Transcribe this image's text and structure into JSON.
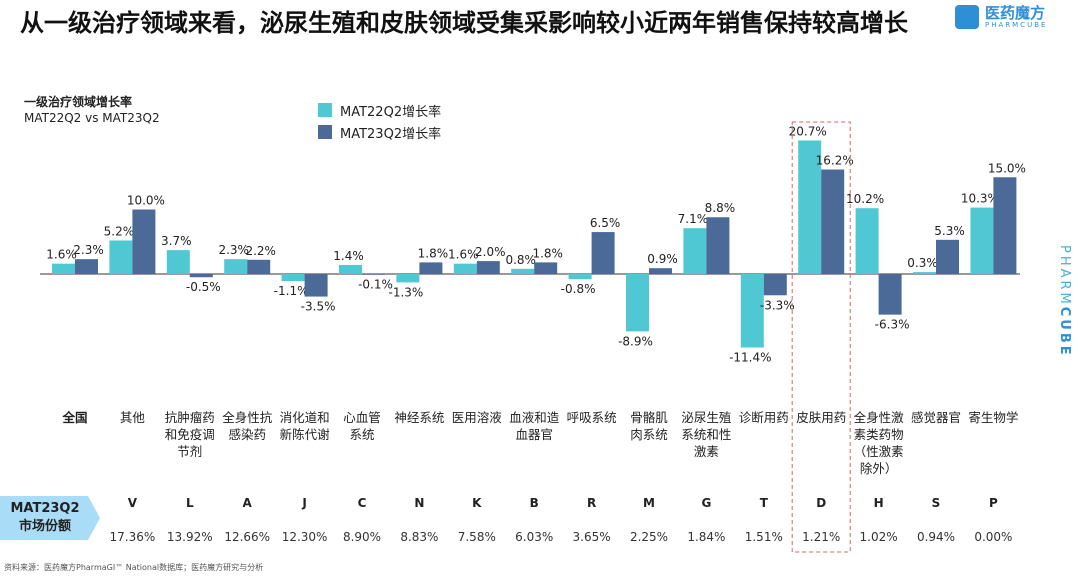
{
  "title": "从一级治疗领域来看，泌尿生殖和皮肤领域受集采影响较小近两年销售保持较高增长",
  "logo": {
    "cn": "医药魔方",
    "en": "PHARMCUBE"
  },
  "side_brand": {
    "a": "PHARM",
    "b": "CUBE"
  },
  "subtitle": {
    "line1": "一级治疗领域增长率",
    "line2": "MAT22Q2 vs MAT23Q2"
  },
  "share_label": {
    "line1": "MAT23Q2",
    "line2": "市场份额"
  },
  "source": "资料来源：医药魔方PharmaGI™ National数据库；医药魔方研究与分析",
  "colors": {
    "s1": "#4fc8d3",
    "s2": "#4b6a97",
    "highlight": "#e06060"
  },
  "chart_data": {
    "type": "bar",
    "title": "一级治疗领域增长率",
    "legend_position": "top-left",
    "categories": [
      "全国",
      "其他",
      "抗肿瘤药和免疫调节剂",
      "全身性抗感染药",
      "消化道和新陈代谢",
      "心血管系统",
      "神经系统",
      "医用溶液",
      "血液和造血器官",
      "呼吸系统",
      "骨骼肌肉系统",
      "泌尿生殖系统和性激素",
      "诊断用药",
      "皮肤用药",
      "全身性激素类药物（性激素除外）",
      "感觉器官",
      "寄生物学"
    ],
    "category_lines": [
      [
        "全国"
      ],
      [
        "其他"
      ],
      [
        "抗肿瘤药",
        "和免疫调",
        "节剂"
      ],
      [
        "全身性抗",
        "感染药"
      ],
      [
        "消化道和",
        "新陈代谢"
      ],
      [
        "心血管",
        "系统"
      ],
      [
        "神经系统"
      ],
      [
        "医用溶液"
      ],
      [
        "血液和造",
        "血器官"
      ],
      [
        "呼吸系统"
      ],
      [
        "骨骼肌",
        "肉系统"
      ],
      [
        "泌尿生殖",
        "系统和性",
        "激素"
      ],
      [
        "诊断用药"
      ],
      [
        "皮肤用药"
      ],
      [
        "全身性激",
        "素类药物",
        "（性激素",
        "除外）"
      ],
      [
        "感觉器官"
      ],
      [
        "寄生物学"
      ]
    ],
    "series": [
      {
        "name": "MAT22Q2增长率",
        "values": [
          1.6,
          5.2,
          3.7,
          2.3,
          -1.1,
          1.4,
          -1.3,
          1.6,
          0.8,
          -0.8,
          -8.9,
          7.1,
          -11.4,
          20.7,
          10.2,
          0.3,
          10.3
        ]
      },
      {
        "name": "MAT23Q2增长率",
        "values": [
          2.3,
          10.0,
          -0.5,
          2.2,
          -3.5,
          -0.1,
          1.8,
          2.0,
          1.8,
          6.5,
          0.9,
          8.8,
          -3.3,
          16.2,
          -6.3,
          5.3,
          15.0
        ]
      }
    ],
    "codes": [
      "",
      "V",
      "L",
      "A",
      "J",
      "C",
      "N",
      "K",
      "B",
      "R",
      "M",
      "G",
      "T",
      "D",
      "H",
      "S",
      "P"
    ],
    "shares": [
      "",
      "17.36%",
      "13.92%",
      "12.66%",
      "12.30%",
      "8.90%",
      "8.83%",
      "7.58%",
      "6.03%",
      "3.65%",
      "2.25%",
      "1.84%",
      "1.51%",
      "1.21%",
      "1.02%",
      "0.94%",
      "0.00%"
    ],
    "highlight_category": "皮肤用药",
    "unit": "%"
  }
}
